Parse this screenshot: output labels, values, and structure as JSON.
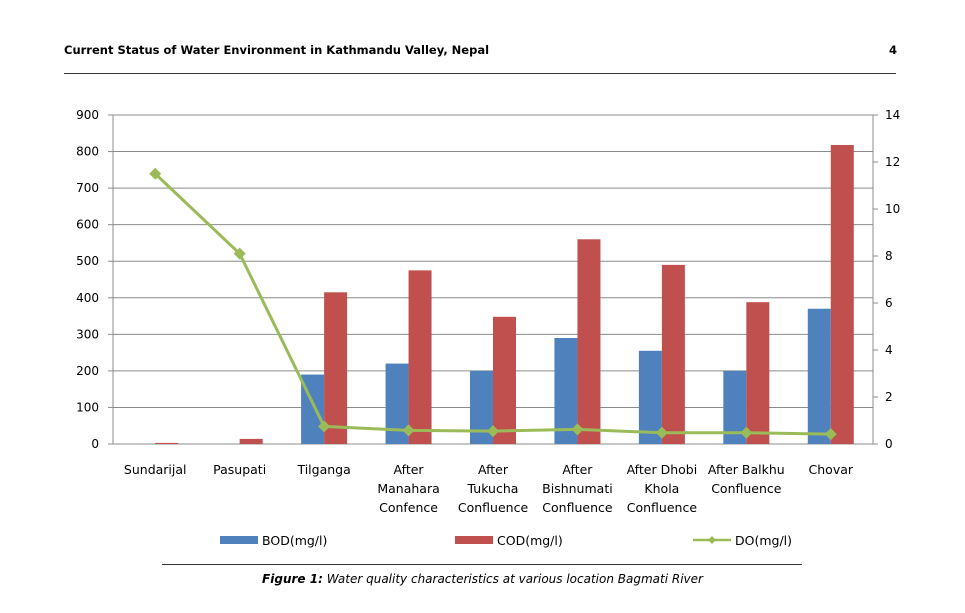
{
  "header": {
    "running_title": "Current Status of Water Environment in Kathmandu Valley, Nepal",
    "page_number": "4"
  },
  "caption": {
    "label": "Figure 1:",
    "text": "Water quality characteristics at various location Bagmati River"
  },
  "chart_data": {
    "type": "bar",
    "categories": [
      [
        "Sundarijal"
      ],
      [
        "Pasupati"
      ],
      [
        "Tilganga"
      ],
      [
        "After",
        "Manahara",
        "Confence"
      ],
      [
        "After",
        "Tukucha",
        "Confluence"
      ],
      [
        "After",
        "Bishnumati",
        "Confluence"
      ],
      [
        "After Dhobi",
        "Khola",
        "Confluence"
      ],
      [
        "After Balkhu",
        "Confluence"
      ],
      [
        "Chovar"
      ]
    ],
    "series": [
      {
        "name": "BOD(mg/l)",
        "type": "bar",
        "axis": "left",
        "color": "#4f81bd",
        "values": [
          0,
          0,
          190,
          220,
          200,
          290,
          255,
          200,
          370
        ]
      },
      {
        "name": "COD(mg/l)",
        "type": "bar",
        "axis": "left",
        "color": "#c0504d",
        "values": [
          3,
          14,
          415,
          475,
          348,
          560,
          490,
          388,
          818
        ]
      },
      {
        "name": "DO(mg/l)",
        "type": "line",
        "axis": "right",
        "color": "#9bbb59",
        "values": [
          11.5,
          8.1,
          0.75,
          0.58,
          0.55,
          0.62,
          0.48,
          0.48,
          0.42
        ]
      }
    ],
    "y_left": {
      "min": 0,
      "max": 900,
      "ticks": [
        0,
        100,
        200,
        300,
        400,
        500,
        600,
        700,
        800,
        900
      ]
    },
    "y_right": {
      "min": 0,
      "max": 14,
      "ticks": [
        0,
        2,
        4,
        6,
        8,
        10,
        12,
        14
      ]
    },
    "grid": true,
    "legend_position": "bottom"
  }
}
